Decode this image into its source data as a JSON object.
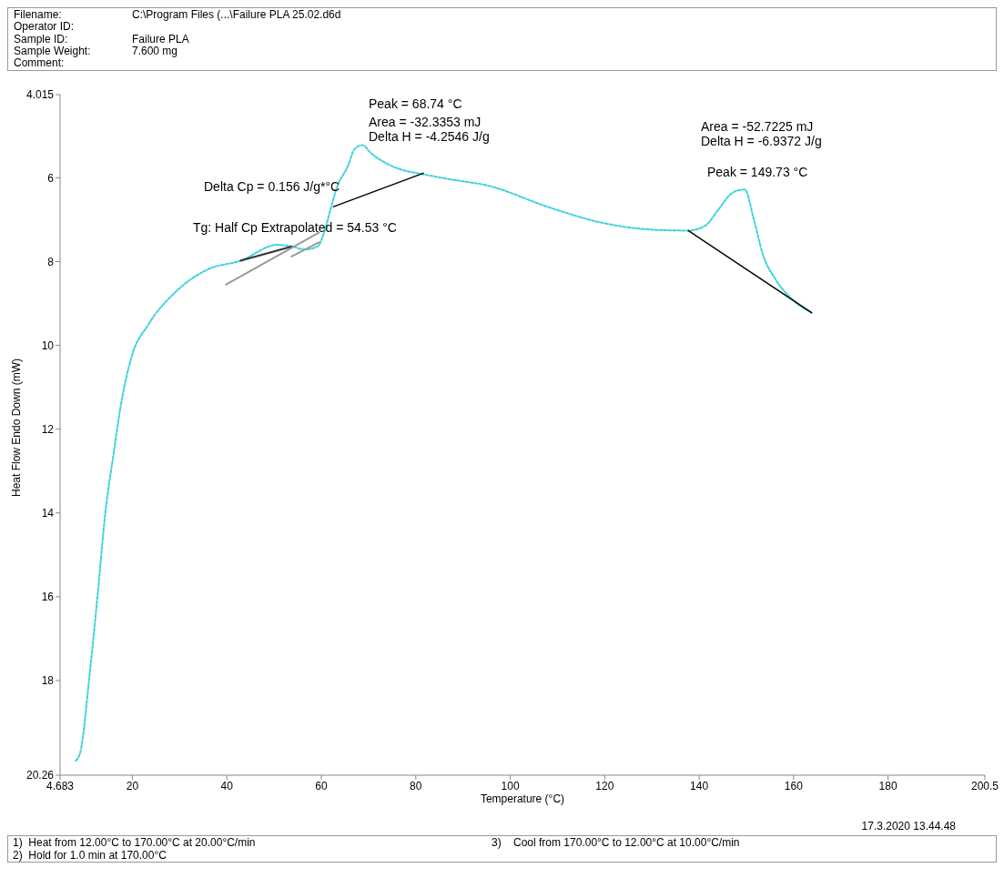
{
  "chart_data": {
    "type": "line",
    "xlabel": "Temperature (°C)",
    "ylabel": "Heat Flow Endo Down (mW)",
    "xlim": [
      4.683,
      200.5
    ],
    "xticks": [
      4.683,
      20,
      40,
      60,
      80,
      100,
      120,
      140,
      160,
      180,
      200.5
    ],
    "ylim": [
      20.26,
      4.015
    ],
    "yticks": [
      4.015,
      6,
      8,
      10,
      12,
      14,
      16,
      18,
      20.26
    ],
    "marker": "none",
    "series": [
      {
        "type": "line",
        "color": "#3fd3dc",
        "line_style": "dotted",
        "x": [
          8.0,
          8.9,
          10.9,
          12.6,
          14.3,
          16.0,
          17.5,
          19.7,
          23.4,
          29.0,
          35.7,
          42.9,
          50.7,
          53.7,
          56.5,
          59.2,
          60.6,
          61.9,
          63.3,
          65.7,
          67.0,
          68.7,
          70.4,
          73.8,
          77.1,
          81.3,
          87.4,
          95.0,
          108.6,
          118.9,
          129.0,
          137.7,
          141.3,
          144.0,
          146.6,
          148.2,
          149.7,
          151.4,
          153.5,
          156.2,
          159.6,
          162.4,
          163.8
        ],
        "values": [
          19.91,
          19.74,
          17.9,
          16.0,
          13.96,
          12.6,
          11.46,
          10.32,
          9.5,
          8.74,
          8.2,
          7.98,
          7.6,
          7.64,
          7.71,
          7.64,
          7.3,
          6.77,
          6.23,
          5.7,
          5.32,
          5.22,
          5.4,
          5.66,
          5.81,
          5.91,
          6.04,
          6.18,
          6.72,
          7.06,
          7.23,
          7.26,
          7.14,
          6.77,
          6.4,
          6.3,
          6.28,
          6.91,
          7.83,
          8.43,
          8.89,
          9.13,
          9.22
        ]
      },
      {
        "type": "line",
        "color": "#000000",
        "line_style": "solid",
        "x": [
          62.6,
          81.6
        ],
        "values": [
          6.69,
          5.89
        ]
      },
      {
        "type": "line",
        "color": "#000000",
        "line_style": "solid",
        "x": [
          137.7,
          163.8
        ],
        "values": [
          7.26,
          9.22
        ]
      },
      {
        "type": "line",
        "color": "#333333",
        "line_style": "solid",
        "x": [
          42.9,
          53.7
        ],
        "values": [
          7.98,
          7.64
        ]
      },
      {
        "type": "line",
        "color": "#999999",
        "line_style": "solid",
        "x": [
          39.8,
          59.5
        ],
        "values": [
          8.55,
          7.31
        ]
      },
      {
        "type": "line",
        "color": "#999999",
        "line_style": "solid",
        "x": [
          53.7,
          59.5
        ],
        "values": [
          7.88,
          7.54
        ]
      }
    ],
    "annotations": [
      "Filename:",
      "C:\\Program Files (...\\Failure PLA 25.02.d6d",
      "Operator ID:",
      "Sample ID:",
      "Failure PLA",
      "Sample Weight:",
      "7.600 mg",
      "Comment:",
      "Peak = 68.74 °C",
      "Area = -32.3353 mJ",
      "Delta H = -4.2546 J/g",
      "Delta Cp = 0.156 J/g*°C",
      "Tg: Half Cp Extrapolated = 54.53 °C",
      "Area = -52.7225 mJ",
      "Delta H = -6.9372 J/g",
      "Peak = 149.73 °C",
      "17.3.2020 13.44.48",
      "1)  Heat from 12.00°C to 170.00°C at 20.00°C/min",
      "2)  Hold for 1.0 min at 170.00°C",
      "3)    Cool from 170.00°C to 12.00°C at 10.00°C/min"
    ]
  }
}
